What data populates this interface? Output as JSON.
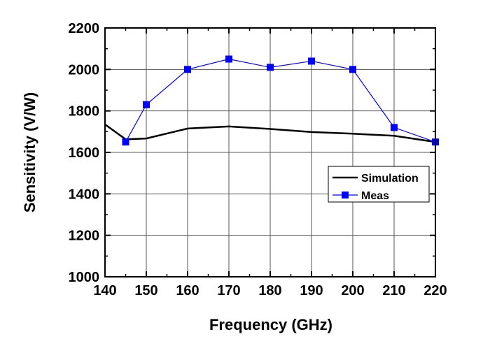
{
  "chart_data": {
    "type": "line",
    "xlabel": "Frequency (GHz)",
    "ylabel": "Sensitivity (V/W)",
    "xlim": [
      140,
      220
    ],
    "ylim": [
      1000,
      2200
    ],
    "xticks": [
      140,
      150,
      160,
      170,
      180,
      190,
      200,
      210,
      220
    ],
    "yticks": [
      1000,
      1200,
      1400,
      1600,
      1800,
      2000,
      2200
    ],
    "xtick_labels": [
      "140",
      "150",
      "160",
      "170",
      "180",
      "190",
      "200",
      "210",
      "220"
    ],
    "ytick_labels": [
      "1000",
      "1200",
      "1400",
      "1600",
      "1800",
      "2000",
      "2200"
    ],
    "grid": true,
    "legend_position": "center-right",
    "series": [
      {
        "name": "Simulation",
        "color": "#000000",
        "marker": "none",
        "x": [
          140,
          145,
          150,
          160,
          170,
          180,
          190,
          200,
          210,
          220
        ],
        "y": [
          1735,
          1663,
          1667,
          1715,
          1725,
          1713,
          1698,
          1690,
          1680,
          1650
        ]
      },
      {
        "name": "Meas",
        "color": "#0000ff",
        "marker": "square",
        "x": [
          145,
          150,
          160,
          170,
          180,
          190,
          200,
          210,
          220
        ],
        "y": [
          1650,
          1830,
          2000,
          2050,
          2010,
          2040,
          2000,
          1720,
          1650
        ]
      }
    ]
  }
}
